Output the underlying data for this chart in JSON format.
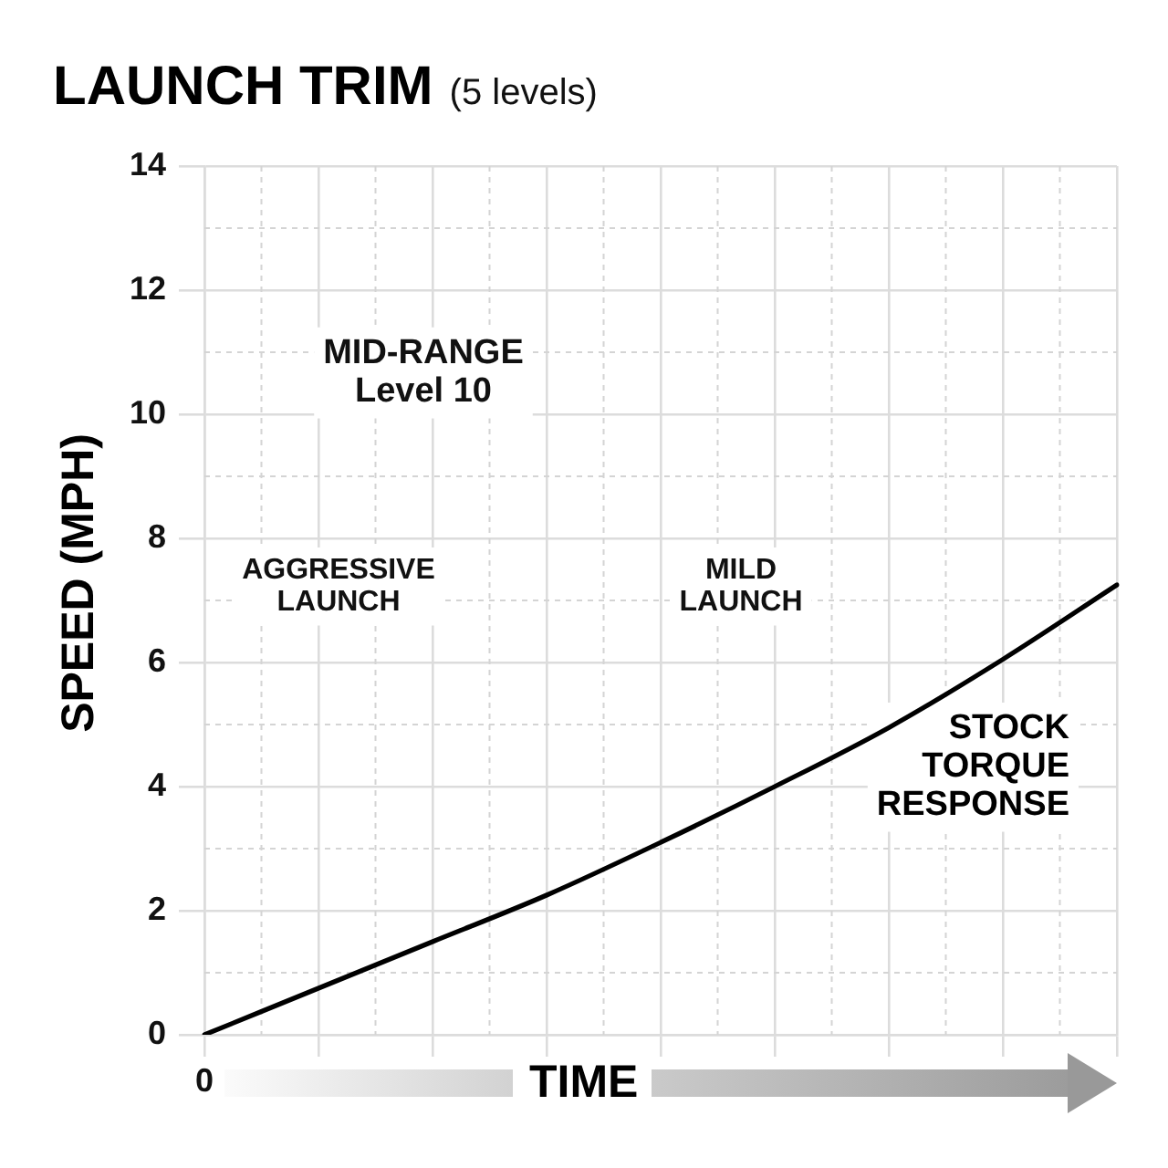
{
  "chart_data": {
    "type": "line",
    "title": "LAUNCH TRIM",
    "subtitle": "(5 levels)",
    "xlabel": "TIME",
    "ylabel": "SPEED (MPH)",
    "categories": [
      "0",
      null,
      null,
      null,
      null,
      null,
      null,
      null,
      null
    ],
    "series": [
      {
        "name": "STOCK TORQUE RESPONSE",
        "color": "#000000",
        "values": [
          0,
          0.75,
          1.5,
          2.25,
          3.1,
          4.0,
          4.95,
          6.05,
          7.25
        ]
      }
    ],
    "ylim": [
      0,
      14
    ],
    "yticks": [
      0,
      2,
      4,
      6,
      8,
      10,
      12,
      14
    ],
    "grid": true,
    "legend": false,
    "marker": "none",
    "line_style": "solid",
    "annotations": [
      "MID-RANGE Level 10",
      "AGGRESSIVE LAUNCH",
      "MILD LAUNCH"
    ]
  }
}
